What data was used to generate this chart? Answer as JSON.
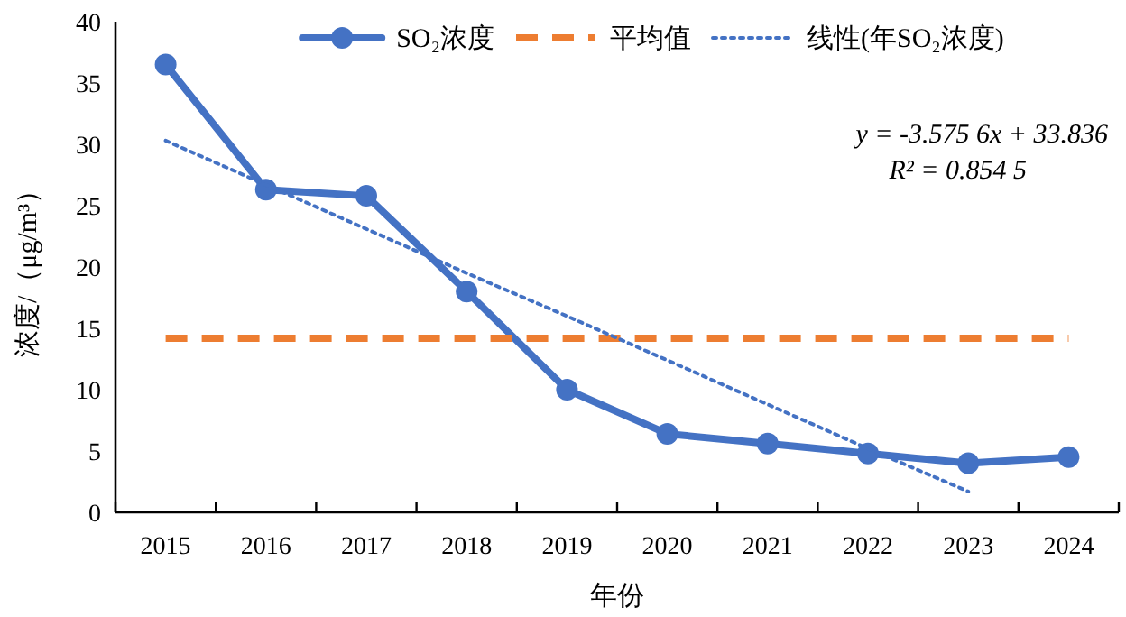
{
  "chart_data": {
    "type": "line",
    "xlabel": "年份",
    "ylabel": "浓度/（μg/m³）",
    "categories": [
      "2015",
      "2016",
      "2017",
      "2018",
      "2019",
      "2020",
      "2021",
      "2022",
      "2023",
      "2024"
    ],
    "ylim": [
      0,
      40
    ],
    "yticks": [
      0,
      5,
      10,
      15,
      20,
      25,
      30,
      35,
      40
    ],
    "legend": "top",
    "series": [
      {
        "name": "SO₂浓度",
        "color": "#4472c4",
        "marker": "circle",
        "line_style": "solid",
        "values": [
          36.5,
          26.3,
          25.8,
          18.0,
          10.0,
          6.4,
          5.6,
          4.8,
          4.0,
          4.5
        ]
      },
      {
        "name": "平均值",
        "color": "#ed7d31",
        "marker": "none",
        "line_style": "dashed",
        "values": [
          14.2,
          14.2,
          14.2,
          14.2,
          14.2,
          14.2,
          14.2,
          14.2,
          14.2,
          14.2
        ]
      },
      {
        "name": "线性(年SO₂浓度)",
        "color": "#4472c4",
        "marker": "none",
        "line_style": "dotted",
        "values": [
          30.3,
          26.7,
          23.1,
          19.5,
          16.0,
          12.4,
          8.8,
          5.2,
          1.7,
          null
        ]
      }
    ],
    "annotations": [
      "y = -3.575 6x + 33.836",
      "R² = 0.854 5"
    ]
  }
}
